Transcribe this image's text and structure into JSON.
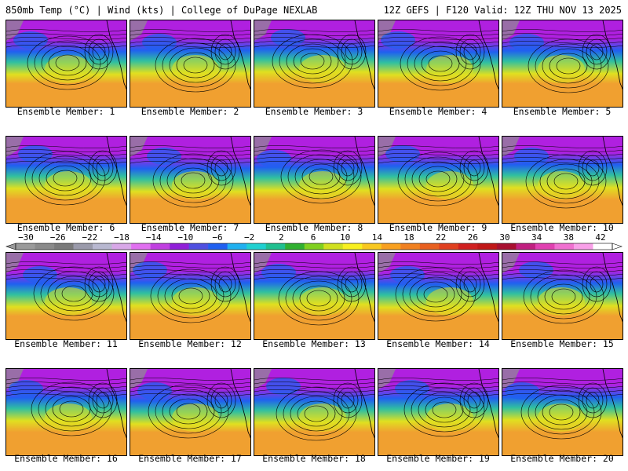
{
  "header": {
    "left": "850mb Temp (°C) | Wind (kts) | College of DuPage NEXLAB",
    "right": "12Z GEFS | F120 Valid: 12Z THU NOV 13 2025"
  },
  "caption_prefix": "Ensemble Member: ",
  "members": [
    1,
    2,
    3,
    4,
    5,
    6,
    7,
    8,
    9,
    10,
    11,
    12,
    13,
    14,
    15,
    16,
    17,
    18,
    19,
    20
  ],
  "colorbar": {
    "ticks": [
      "−30",
      "−26",
      "−22",
      "−18",
      "−14",
      "−10",
      "−6",
      "−2",
      "2",
      "6",
      "10",
      "14",
      "18",
      "22",
      "26",
      "30",
      "34",
      "38",
      "42"
    ],
    "colors": [
      "#9a9a9a",
      "#8a8a8a",
      "#7a7a7a",
      "#9a9aaa",
      "#b8b8d0",
      "#d8a8e8",
      "#e070f0",
      "#c040e0",
      "#9020d8",
      "#5050e0",
      "#2060f0",
      "#20b0f0",
      "#20d0d0",
      "#20c090",
      "#30b030",
      "#80d020",
      "#d0e020",
      "#f8f020",
      "#f8c820",
      "#f8a020",
      "#f08020",
      "#e86020",
      "#e04020",
      "#d02020",
      "#c01818",
      "#a81030",
      "#c02080",
      "#e040b0",
      "#f070d0",
      "#f8a0e8",
      "#ffffff"
    ]
  },
  "map_colors": {
    "cold": "#b020e0",
    "cool": "#2060f0",
    "mild": "#30c0a0",
    "warm": "#e0e020",
    "hot": "#f0a030",
    "land": "#909090",
    "contour": "#000000"
  }
}
